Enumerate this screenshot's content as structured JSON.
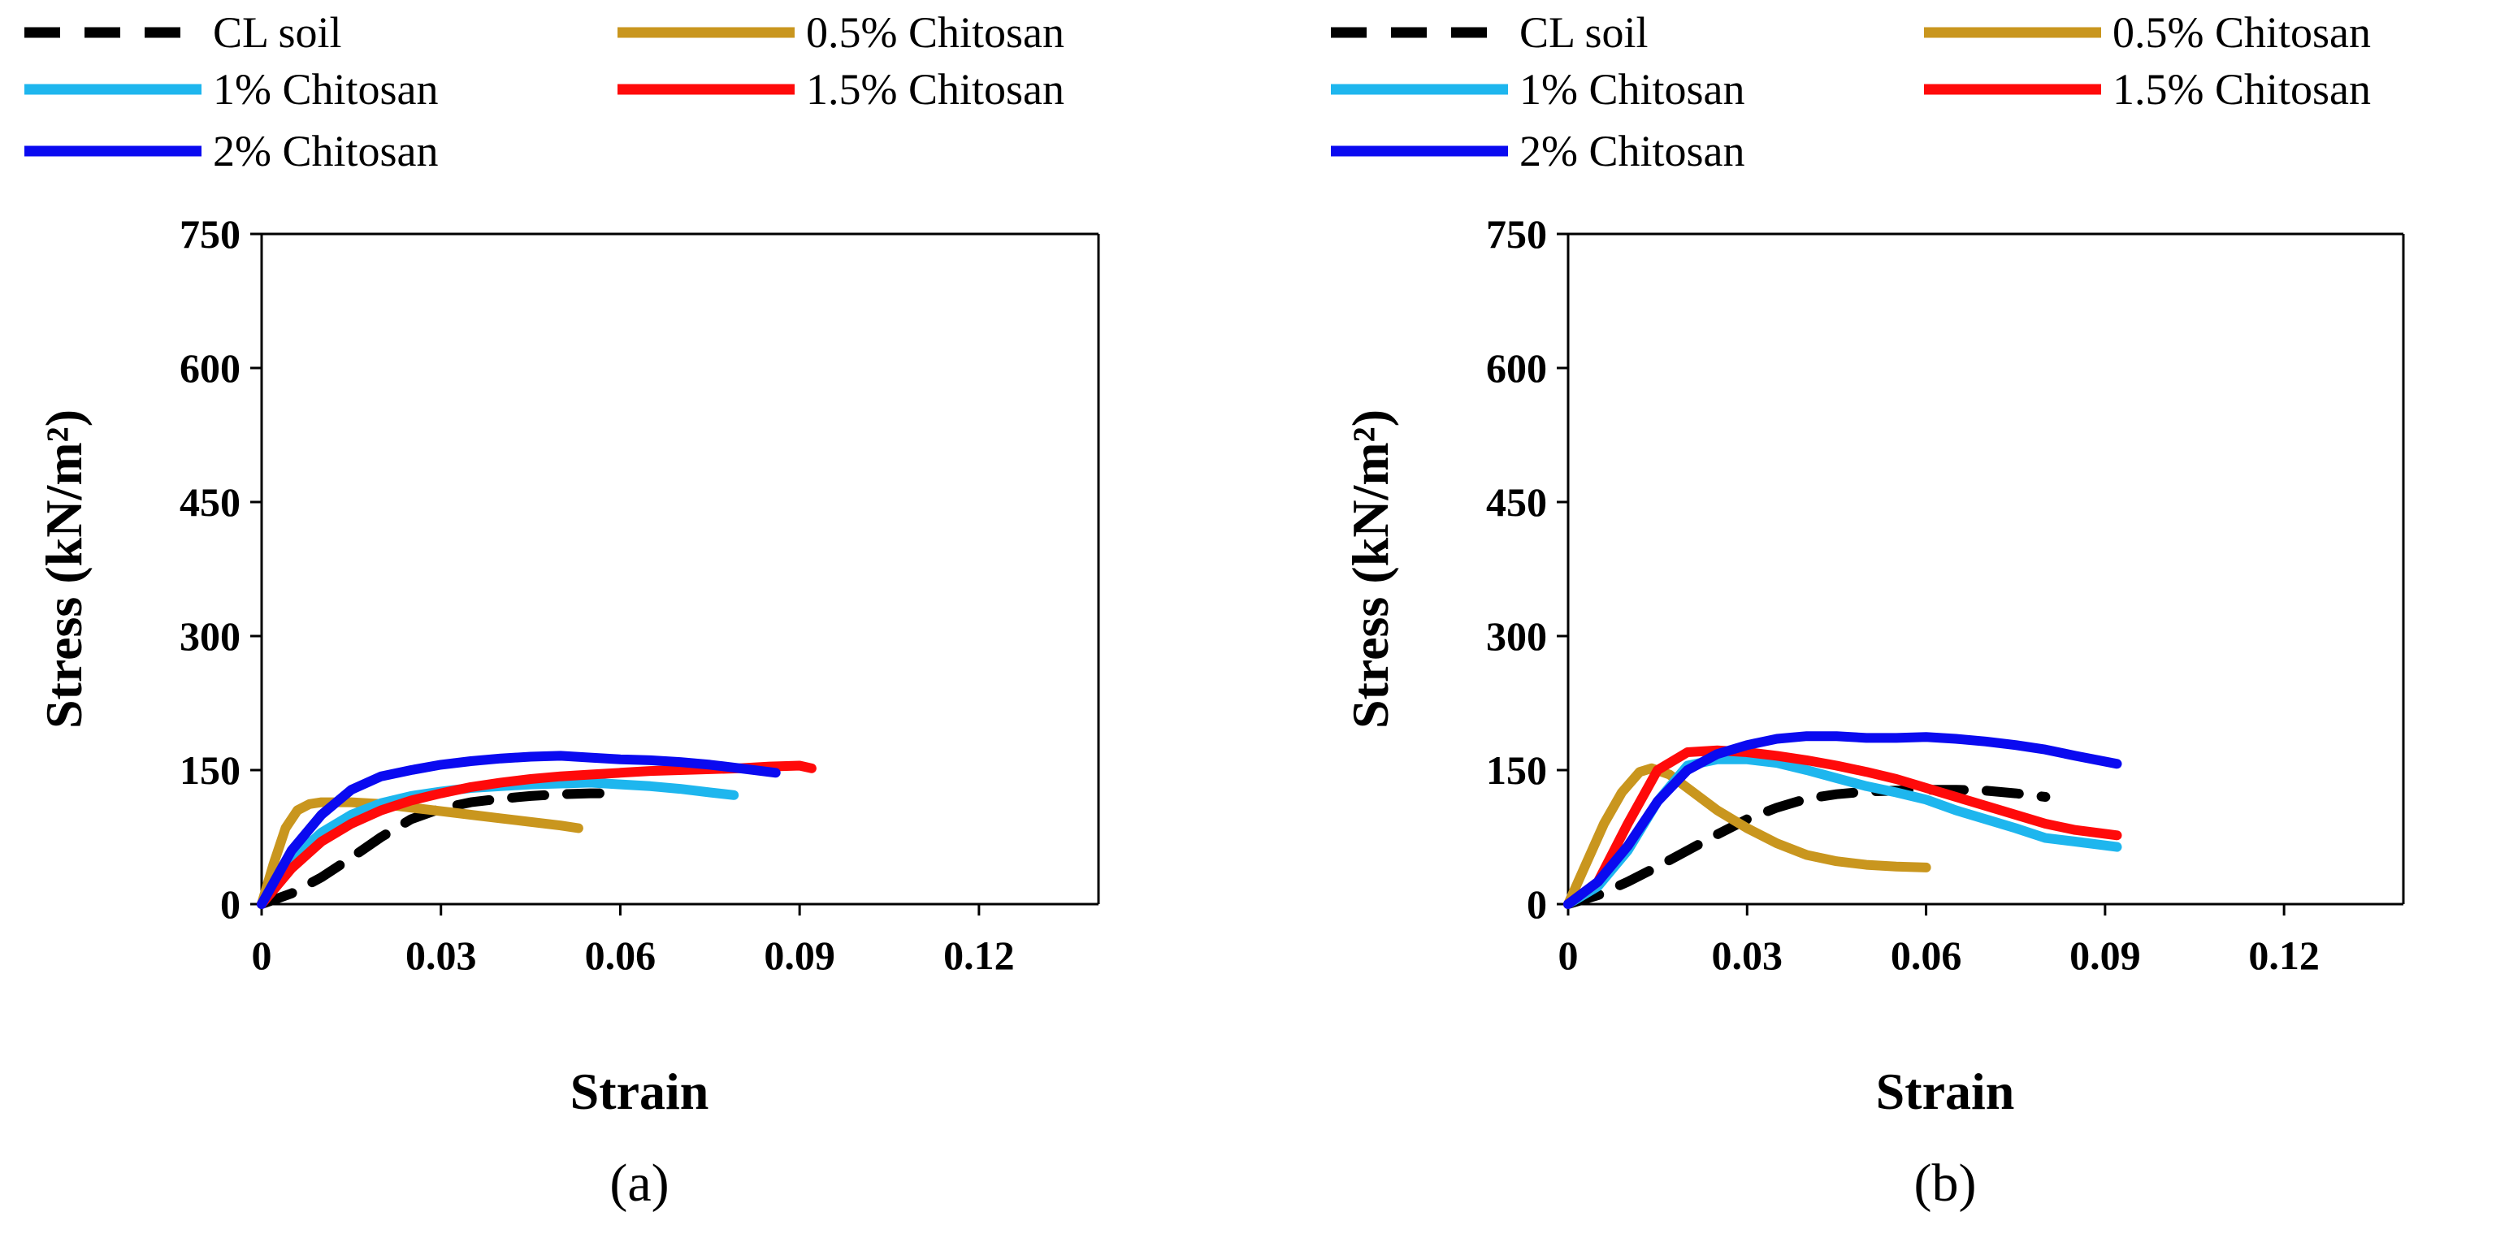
{
  "figure": {
    "legend": {
      "entries": [
        {
          "label": "CL soil",
          "color": "#000000",
          "dash": "dashed"
        },
        {
          "label": "0.5% Chitosan",
          "color": "#C9961E",
          "dash": "solid"
        },
        {
          "label": "1% Chitosan",
          "color": "#1EB6EE",
          "dash": "solid"
        },
        {
          "label": "1.5% Chitosan",
          "color": "#FF0A0A",
          "dash": "solid"
        },
        {
          "label": "2% Chitosan",
          "color": "#0A0AF0",
          "dash": "solid"
        }
      ]
    }
  },
  "chart_data": [
    {
      "type": "line",
      "panel_label": "(a)",
      "xlabel": "Strain",
      "ylabel": "Stress (kN/m²)",
      "xlim": [
        0,
        0.14
      ],
      "ylim": [
        0,
        750
      ],
      "xticks": [
        "0",
        "0.03",
        "0.06",
        "0.09",
        "0.12"
      ],
      "yticks": [
        "0",
        "150",
        "300",
        "450",
        "600",
        "750"
      ],
      "grid": false,
      "legend_position": "top",
      "series": [
        {
          "name": "CL soil",
          "color": "#000000",
          "dash": "dashed",
          "x": [
            0,
            0.005,
            0.01,
            0.015,
            0.02,
            0.025,
            0.03,
            0.035,
            0.04,
            0.045,
            0.05,
            0.055,
            0.06
          ],
          "y": [
            0,
            12,
            30,
            52,
            75,
            95,
            107,
            114,
            118,
            121,
            123,
            124,
            124
          ]
        },
        {
          "name": "0.5% Chitosan",
          "color": "#C9961E",
          "dash": "solid",
          "x": [
            0,
            0.002,
            0.004,
            0.006,
            0.008,
            0.01,
            0.015,
            0.02,
            0.025,
            0.03,
            0.035,
            0.04,
            0.045,
            0.05,
            0.053
          ],
          "y": [
            0,
            45,
            85,
            105,
            112,
            114,
            114,
            112,
            108,
            104,
            100,
            96,
            92,
            88,
            85
          ]
        },
        {
          "name": "1% Chitosan",
          "color": "#1EB6EE",
          "dash": "solid",
          "x": [
            0,
            0.005,
            0.01,
            0.015,
            0.02,
            0.025,
            0.03,
            0.035,
            0.04,
            0.045,
            0.05,
            0.055,
            0.06,
            0.065,
            0.07,
            0.075,
            0.079
          ],
          "y": [
            0,
            50,
            80,
            100,
            113,
            121,
            126,
            130,
            132,
            134,
            135,
            136,
            134,
            132,
            129,
            125,
            122
          ]
        },
        {
          "name": "1.5% Chitosan",
          "color": "#FF0A0A",
          "dash": "solid",
          "x": [
            0,
            0.005,
            0.01,
            0.015,
            0.02,
            0.025,
            0.03,
            0.035,
            0.04,
            0.045,
            0.05,
            0.055,
            0.06,
            0.065,
            0.07,
            0.075,
            0.08,
            0.085,
            0.09,
            0.092
          ],
          "y": [
            0,
            40,
            70,
            90,
            105,
            116,
            124,
            131,
            136,
            140,
            143,
            145,
            147,
            149,
            150,
            151,
            152,
            154,
            155,
            152
          ]
        },
        {
          "name": "2% Chitosan",
          "color": "#0A0AF0",
          "dash": "solid",
          "x": [
            0,
            0.005,
            0.01,
            0.015,
            0.02,
            0.025,
            0.03,
            0.035,
            0.04,
            0.045,
            0.05,
            0.055,
            0.06,
            0.065,
            0.07,
            0.075,
            0.08,
            0.086
          ],
          "y": [
            0,
            60,
            100,
            128,
            143,
            150,
            156,
            160,
            163,
            165,
            166,
            164,
            162,
            161,
            159,
            156,
            152,
            147
          ]
        }
      ]
    },
    {
      "type": "line",
      "panel_label": "(b)",
      "xlabel": "Strain",
      "ylabel": "Stress (kN/m²)",
      "xlim": [
        0,
        0.14
      ],
      "ylim": [
        0,
        750
      ],
      "xticks": [
        "0",
        "0.03",
        "0.06",
        "0.09",
        "0.12"
      ],
      "yticks": [
        "0",
        "150",
        "300",
        "450",
        "600",
        "750"
      ],
      "grid": false,
      "legend_position": "top",
      "series": [
        {
          "name": "CL soil",
          "color": "#000000",
          "dash": "dashed",
          "x": [
            0,
            0.005,
            0.01,
            0.015,
            0.02,
            0.025,
            0.03,
            0.035,
            0.04,
            0.045,
            0.05,
            0.055,
            0.06,
            0.065,
            0.07,
            0.075,
            0.08
          ],
          "y": [
            0,
            10,
            25,
            42,
            60,
            78,
            95,
            108,
            118,
            123,
            126,
            127,
            128,
            128,
            127,
            124,
            120
          ]
        },
        {
          "name": "0.5% Chitosan",
          "color": "#C9961E",
          "dash": "solid",
          "x": [
            0,
            0.003,
            0.006,
            0.009,
            0.012,
            0.014,
            0.017,
            0.02,
            0.025,
            0.03,
            0.035,
            0.04,
            0.045,
            0.05,
            0.055,
            0.06
          ],
          "y": [
            0,
            45,
            90,
            125,
            148,
            152,
            145,
            130,
            105,
            85,
            68,
            55,
            48,
            44,
            42,
            41
          ]
        },
        {
          "name": "1% Chitosan",
          "color": "#1EB6EE",
          "dash": "solid",
          "x": [
            0,
            0.005,
            0.01,
            0.015,
            0.02,
            0.025,
            0.03,
            0.035,
            0.04,
            0.045,
            0.05,
            0.055,
            0.06,
            0.065,
            0.07,
            0.075,
            0.08,
            0.085,
            0.092
          ],
          "y": [
            0,
            20,
            60,
            115,
            155,
            162,
            162,
            158,
            150,
            141,
            132,
            125,
            117,
            105,
            95,
            85,
            74,
            70,
            64
          ]
        },
        {
          "name": "1.5% Chitosan",
          "color": "#FF0A0A",
          "dash": "solid",
          "x": [
            0,
            0.005,
            0.01,
            0.015,
            0.02,
            0.025,
            0.03,
            0.035,
            0.04,
            0.045,
            0.05,
            0.055,
            0.06,
            0.065,
            0.07,
            0.075,
            0.08,
            0.085,
            0.092
          ],
          "y": [
            0,
            25,
            90,
            150,
            170,
            172,
            170,
            166,
            161,
            155,
            148,
            140,
            130,
            120,
            110,
            100,
            90,
            83,
            77
          ]
        },
        {
          "name": "2% Chitosan",
          "color": "#0A0AF0",
          "dash": "solid",
          "x": [
            0,
            0.005,
            0.01,
            0.015,
            0.02,
            0.025,
            0.03,
            0.035,
            0.04,
            0.045,
            0.05,
            0.055,
            0.06,
            0.065,
            0.07,
            0.075,
            0.08,
            0.085,
            0.092
          ],
          "y": [
            0,
            25,
            65,
            115,
            150,
            168,
            178,
            185,
            188,
            188,
            186,
            186,
            187,
            185,
            182,
            178,
            173,
            166,
            157
          ]
        }
      ]
    }
  ]
}
